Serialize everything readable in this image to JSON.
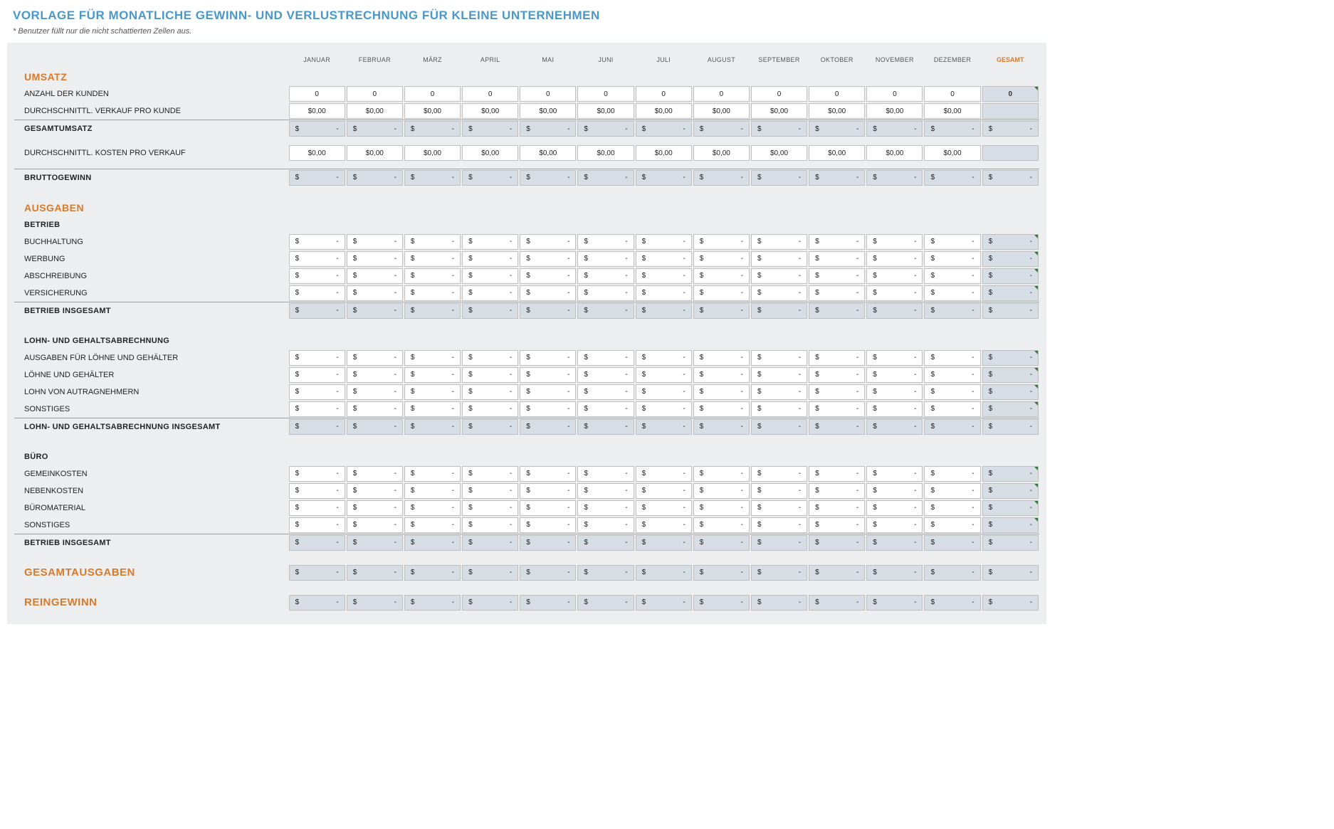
{
  "title": "VORLAGE FÜR MONATLICHE GEWINN- UND VERLUSTRECHNUNG FÜR KLEINE UNTERNEHMEN",
  "note": "* Benutzer füllt nur die nicht schattierten Zellen aus.",
  "months": [
    "JANUAR",
    "FEBRUAR",
    "MÄRZ",
    "APRIL",
    "MAI",
    "JUNI",
    "JULI",
    "AUGUST",
    "SEPTEMBER",
    "OKTOBER",
    "NOVEMBER",
    "DEZEMBER"
  ],
  "total_label": "GESAMT",
  "colors": {
    "accent": "#4a98c9",
    "section": "#d77a2b",
    "sheet_bg": "#eceef0",
    "shaded_cell": "#d6dde4",
    "border": "#bfbfbf",
    "corner": "#2e7d32"
  },
  "umsatz": {
    "header": "UMSATZ",
    "rows": [
      {
        "label": "ANZAHL DER KUNDEN",
        "type": "int",
        "values": [
          0,
          0,
          0,
          0,
          0,
          0,
          0,
          0,
          0,
          0,
          0,
          0
        ],
        "total": 0
      },
      {
        "label": "DURCHSCHNITTL. VERKAUF PRO KUNDE",
        "type": "money",
        "values": [
          "$0,00",
          "$0,00",
          "$0,00",
          "$0,00",
          "$0,00",
          "$0,00",
          "$0,00",
          "$0,00",
          "$0,00",
          "$0,00",
          "$0,00",
          "$0,00"
        ],
        "total": null
      }
    ],
    "gesamt": {
      "label": "GESAMTUMSATZ"
    },
    "kosten": {
      "label": "DURCHSCHNITTL. KOSTEN PRO VERKAUF",
      "values": [
        "$0,00",
        "$0,00",
        "$0,00",
        "$0,00",
        "$0,00",
        "$0,00",
        "$0,00",
        "$0,00",
        "$0,00",
        "$0,00",
        "$0,00",
        "$0,00"
      ]
    },
    "brutto": {
      "label": "BRUTTOGEWINN"
    }
  },
  "ausgaben": {
    "header": "AUSGABEN",
    "groups": [
      {
        "sub": "BETRIEB",
        "rows": [
          "BUCHHALTUNG",
          "WERBUNG",
          "ABSCHREIBUNG",
          "VERSICHERUNG"
        ],
        "total": "BETRIEB INSGESAMT"
      },
      {
        "sub": "LOHN- UND GEHALTSABRECHNUNG",
        "rows": [
          "AUSGABEN FÜR LÖHNE UND GEHÄLTER",
          "LÖHNE UND GEHÄLTER",
          "LOHN VON AUTRAGNEHMERN",
          "SONSTIGES"
        ],
        "total": "LOHN- UND GEHALTSABRECHNUNG INSGESAMT"
      },
      {
        "sub": "BÜRO",
        "rows": [
          "GEMEINKOSTEN",
          "NEBENKOSTEN",
          "BÜROMATERIAL",
          "SONSTIGES"
        ],
        "total": "BETRIEB INSGESAMT"
      }
    ]
  },
  "summary": {
    "gesamtausgaben": "GESAMTAUSGABEN",
    "reingewinn": "REINGEWINN"
  },
  "dash": {
    "sym": "$",
    "mark": "-"
  }
}
